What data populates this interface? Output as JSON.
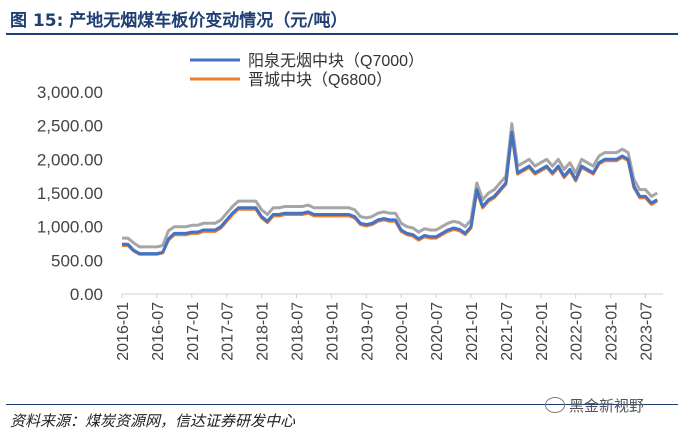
{
  "header": {
    "title": "图 15:  产地无烟煤车板价变动情况（元/吨）"
  },
  "footer": {
    "source": "资料来源：煤炭资源网，信达证券研发中心",
    "watermark": "黑金新视野"
  },
  "chart_data": {
    "type": "line",
    "title": "产地无烟煤车板价变动情况（元/吨）",
    "xlabel": "",
    "ylabel": "",
    "ylim": [
      0,
      3000
    ],
    "yticks": [
      0,
      500,
      1000,
      1500,
      2000,
      2500,
      3000
    ],
    "ytick_labels": [
      "0.00",
      "500.00",
      "1,000.00",
      "1,500.00",
      "2,000.00",
      "2,500.00",
      "3,000.00"
    ],
    "xlim": [
      "2016-01",
      "2023-10"
    ],
    "xtick_labels": [
      "2016-01",
      "2016-07",
      "2017-01",
      "2017-07",
      "2018-01",
      "2018-07",
      "2019-01",
      "2019-07",
      "2020-01",
      "2020-07",
      "2021-01",
      "2021-07",
      "2022-01",
      "2022-07",
      "2023-01",
      "2023-07"
    ],
    "legend": "top-center",
    "colors": {
      "series1": "#4472c4",
      "series2": "#ed7d31",
      "series3": "#a6a6a6",
      "axis": "#d0d0d0",
      "text": "#444444"
    },
    "series": [
      {
        "name": "阳泉无烟中块（Q7000）",
        "color": "#4472c4",
        "x": [
          "2016-01",
          "2016-02",
          "2016-03",
          "2016-04",
          "2016-05",
          "2016-06",
          "2016-07",
          "2016-08",
          "2016-09",
          "2016-10",
          "2016-11",
          "2016-12",
          "2017-01",
          "2017-02",
          "2017-03",
          "2017-04",
          "2017-05",
          "2017-06",
          "2017-07",
          "2017-08",
          "2017-09",
          "2017-10",
          "2017-11",
          "2017-12",
          "2018-01",
          "2018-02",
          "2018-03",
          "2018-04",
          "2018-05",
          "2018-06",
          "2018-07",
          "2018-08",
          "2018-09",
          "2018-10",
          "2018-11",
          "2018-12",
          "2019-01",
          "2019-02",
          "2019-03",
          "2019-04",
          "2019-05",
          "2019-06",
          "2019-07",
          "2019-08",
          "2019-09",
          "2019-10",
          "2019-11",
          "2019-12",
          "2020-01",
          "2020-02",
          "2020-03",
          "2020-04",
          "2020-05",
          "2020-06",
          "2020-07",
          "2020-08",
          "2020-09",
          "2020-10",
          "2020-11",
          "2020-12",
          "2021-01",
          "2021-02",
          "2021-03",
          "2021-04",
          "2021-05",
          "2021-06",
          "2021-07",
          "2021-08",
          "2021-09",
          "2021-10",
          "2021-11",
          "2021-12",
          "2022-01",
          "2022-02",
          "2022-03",
          "2022-04",
          "2022-05",
          "2022-06",
          "2022-07",
          "2022-08",
          "2022-09",
          "2022-10",
          "2022-11",
          "2022-12",
          "2023-01",
          "2023-02",
          "2023-03",
          "2023-04",
          "2023-05",
          "2023-06",
          "2023-07",
          "2023-08",
          "2023-09"
        ],
        "values": [
          740,
          740,
          650,
          600,
          600,
          600,
          600,
          620,
          820,
          900,
          900,
          900,
          920,
          920,
          950,
          950,
          950,
          1000,
          1100,
          1200,
          1280,
          1280,
          1280,
          1280,
          1150,
          1080,
          1180,
          1180,
          1200,
          1200,
          1200,
          1200,
          1220,
          1180,
          1180,
          1180,
          1180,
          1180,
          1180,
          1180,
          1150,
          1050,
          1030,
          1050,
          1100,
          1120,
          1100,
          1100,
          950,
          900,
          880,
          820,
          870,
          850,
          850,
          900,
          950,
          980,
          960,
          900,
          1000,
          1550,
          1300,
          1400,
          1450,
          1550,
          1650,
          2400,
          1800,
          1850,
          1900,
          1800,
          1850,
          1900,
          1800,
          1900,
          1750,
          1850,
          1700,
          1900,
          1850,
          1800,
          1950,
          2000,
          2000,
          2000,
          2050,
          2000,
          1600,
          1450,
          1450,
          1350,
          1400
        ]
      },
      {
        "name": "晋城中块（Q6800）",
        "color": "#ed7d31",
        "x": [
          "2016-01",
          "2016-02",
          "2016-03",
          "2016-04",
          "2016-05",
          "2016-06",
          "2016-07",
          "2016-08",
          "2016-09",
          "2016-10",
          "2016-11",
          "2016-12",
          "2017-01",
          "2017-02",
          "2017-03",
          "2017-04",
          "2017-05",
          "2017-06",
          "2017-07",
          "2017-08",
          "2017-09",
          "2017-10",
          "2017-11",
          "2017-12",
          "2018-01",
          "2018-02",
          "2018-03",
          "2018-04",
          "2018-05",
          "2018-06",
          "2018-07",
          "2018-08",
          "2018-09",
          "2018-10",
          "2018-11",
          "2018-12",
          "2019-01",
          "2019-02",
          "2019-03",
          "2019-04",
          "2019-05",
          "2019-06",
          "2019-07",
          "2019-08",
          "2019-09",
          "2019-10",
          "2019-11",
          "2019-12",
          "2020-01",
          "2020-02",
          "2020-03",
          "2020-04",
          "2020-05",
          "2020-06",
          "2020-07",
          "2020-08",
          "2020-09",
          "2020-10",
          "2020-11",
          "2020-12",
          "2021-01",
          "2021-02",
          "2021-03",
          "2021-04",
          "2021-05",
          "2021-06",
          "2021-07",
          "2021-08",
          "2021-09",
          "2021-10",
          "2021-11",
          "2021-12",
          "2022-01",
          "2022-02",
          "2022-03",
          "2022-04",
          "2022-05",
          "2022-06",
          "2022-07",
          "2022-08",
          "2022-09",
          "2022-10",
          "2022-11",
          "2022-12",
          "2023-01",
          "2023-02",
          "2023-03",
          "2023-04",
          "2023-05",
          "2023-06",
          "2023-07",
          "2023-08",
          "2023-09"
        ],
        "values": [
          720,
          720,
          640,
          590,
          590,
          590,
          590,
          610,
          800,
          880,
          880,
          880,
          900,
          900,
          930,
          930,
          930,
          980,
          1080,
          1180,
          1260,
          1260,
          1260,
          1260,
          1130,
          1060,
          1160,
          1160,
          1180,
          1180,
          1180,
          1180,
          1200,
          1160,
          1160,
          1160,
          1160,
          1160,
          1160,
          1160,
          1130,
          1030,
          1010,
          1030,
          1080,
          1100,
          1080,
          1080,
          930,
          880,
          860,
          800,
          850,
          830,
          830,
          880,
          930,
          960,
          940,
          880,
          980,
          1520,
          1280,
          1380,
          1430,
          1530,
          1630,
          2380,
          1780,
          1830,
          1880,
          1780,
          1830,
          1880,
          1780,
          1880,
          1730,
          1830,
          1680,
          1880,
          1830,
          1780,
          1930,
          1980,
          1980,
          1980,
          2030,
          1980,
          1580,
          1430,
          1430,
          1330,
          1380
        ]
      },
      {
        "name": "",
        "color": "#a6a6a6",
        "x": [
          "2016-01",
          "2016-02",
          "2016-03",
          "2016-04",
          "2016-05",
          "2016-06",
          "2016-07",
          "2016-08",
          "2016-09",
          "2016-10",
          "2016-11",
          "2016-12",
          "2017-01",
          "2017-02",
          "2017-03",
          "2017-04",
          "2017-05",
          "2017-06",
          "2017-07",
          "2017-08",
          "2017-09",
          "2017-10",
          "2017-11",
          "2017-12",
          "2018-01",
          "2018-02",
          "2018-03",
          "2018-04",
          "2018-05",
          "2018-06",
          "2018-07",
          "2018-08",
          "2018-09",
          "2018-10",
          "2018-11",
          "2018-12",
          "2019-01",
          "2019-02",
          "2019-03",
          "2019-04",
          "2019-05",
          "2019-06",
          "2019-07",
          "2019-08",
          "2019-09",
          "2019-10",
          "2019-11",
          "2019-12",
          "2020-01",
          "2020-02",
          "2020-03",
          "2020-04",
          "2020-05",
          "2020-06",
          "2020-07",
          "2020-08",
          "2020-09",
          "2020-10",
          "2020-11",
          "2020-12",
          "2021-01",
          "2021-02",
          "2021-03",
          "2021-04",
          "2021-05",
          "2021-06",
          "2021-07",
          "2021-08",
          "2021-09",
          "2021-10",
          "2021-11",
          "2021-12",
          "2022-01",
          "2022-02",
          "2022-03",
          "2022-04",
          "2022-05",
          "2022-06",
          "2022-07",
          "2022-08",
          "2022-09",
          "2022-10",
          "2022-11",
          "2022-12",
          "2023-01",
          "2023-02",
          "2023-03",
          "2023-04",
          "2023-05",
          "2023-06",
          "2023-07",
          "2023-08",
          "2023-09"
        ],
        "values": [
          830,
          830,
          760,
          700,
          700,
          700,
          700,
          720,
          940,
          1000,
          1000,
          1000,
          1020,
          1020,
          1050,
          1050,
          1050,
          1100,
          1200,
          1300,
          1380,
          1380,
          1380,
          1380,
          1250,
          1180,
          1280,
          1280,
          1300,
          1300,
          1300,
          1300,
          1320,
          1280,
          1280,
          1280,
          1280,
          1280,
          1280,
          1280,
          1250,
          1150,
          1130,
          1150,
          1200,
          1220,
          1200,
          1200,
          1050,
          1000,
          980,
          920,
          970,
          950,
          950,
          1000,
          1050,
          1080,
          1060,
          1000,
          1100,
          1650,
          1400,
          1500,
          1550,
          1650,
          1750,
          2530,
          1900,
          1950,
          2000,
          1900,
          1950,
          2000,
          1900,
          2000,
          1850,
          1950,
          1800,
          2000,
          1950,
          1900,
          2050,
          2100,
          2100,
          2100,
          2150,
          2100,
          1700,
          1550,
          1550,
          1450,
          1500
        ]
      }
    ]
  }
}
